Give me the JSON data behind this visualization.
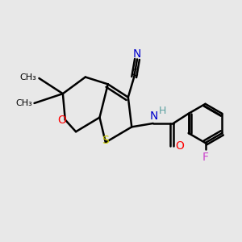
{
  "bg_color": "#e8e8e8",
  "atom_colors": {
    "C": "#000000",
    "N": "#0000cc",
    "O": "#ff0000",
    "S": "#cccc00",
    "F": "#cc44cc",
    "H": "#5aa0a0"
  },
  "bond_lw": 1.8,
  "font_size": 10,
  "fig_size": [
    3.0,
    3.0
  ],
  "dpi": 100
}
